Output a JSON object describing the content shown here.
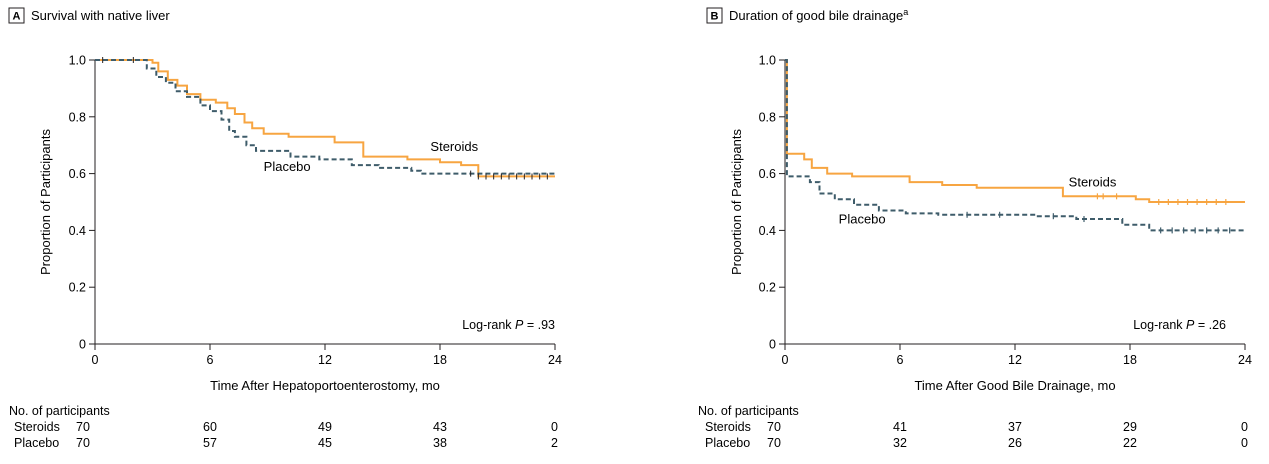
{
  "colors": {
    "steroids": "#f7a541",
    "placebo": "#3e5c6a",
    "axis": "#231f20"
  },
  "chart_data": [
    {
      "type": "line",
      "panel_letter": "A",
      "title": "Survival with native liver",
      "title_superscript": "",
      "xlabel": "Time After Hepatoportoenterostomy, mo",
      "ylabel": "Proportion of Participants",
      "xlim": [
        0,
        24
      ],
      "ylim": [
        0,
        1.0
      ],
      "xticks": [
        "0",
        "6",
        "12",
        "18",
        "24"
      ],
      "yticks": [
        "0",
        "0.2",
        "0.4",
        "0.6",
        "0.8",
        "1.0"
      ],
      "stat_prefix": "Log-rank ",
      "stat_p": "P",
      "stat_value": " = .93",
      "series": [
        {
          "name": "Steroids",
          "style": "solid",
          "label_at": [
            17.5,
            0.68
          ],
          "x": [
            0,
            3.0,
            3.3,
            3.8,
            4.3,
            4.8,
            5.5,
            6.3,
            6.9,
            7.3,
            7.8,
            8.2,
            8.8,
            10.1,
            12.5,
            14.0,
            16.3,
            18.0,
            19.1,
            20.0,
            24.0
          ],
          "y": [
            1.0,
            0.99,
            0.96,
            0.93,
            0.91,
            0.88,
            0.86,
            0.85,
            0.83,
            0.81,
            0.78,
            0.76,
            0.74,
            0.73,
            0.71,
            0.66,
            0.65,
            0.64,
            0.63,
            0.59,
            0.59
          ]
        },
        {
          "name": "Placebo",
          "style": "dashed",
          "label_at": [
            8.8,
            0.61
          ],
          "x": [
            0,
            2.7,
            3.2,
            3.7,
            4.2,
            4.8,
            5.5,
            6.0,
            6.6,
            7.0,
            7.3,
            7.9,
            8.4,
            10.2,
            11.7,
            13.4,
            14.8,
            16.5,
            17.0,
            24.0
          ],
          "y": [
            1.0,
            0.97,
            0.94,
            0.92,
            0.89,
            0.87,
            0.84,
            0.82,
            0.79,
            0.75,
            0.73,
            0.7,
            0.68,
            0.66,
            0.65,
            0.63,
            0.62,
            0.61,
            0.6,
            0.6
          ]
        }
      ],
      "censor_marks": [
        0.4,
        2.0,
        19.6,
        20.0,
        20.4,
        20.8,
        21.2,
        21.6,
        22.0,
        22.4,
        22.8,
        23.2,
        23.6
      ],
      "risk_table": {
        "heading": "No. of participants",
        "times": [
          0,
          6,
          12,
          18,
          24
        ],
        "rows": [
          {
            "label": "Steroids",
            "values": [
              "70",
              "60",
              "49",
              "43",
              "0"
            ]
          },
          {
            "label": "Placebo",
            "values": [
              "70",
              "57",
              "45",
              "38",
              "2"
            ]
          }
        ]
      }
    },
    {
      "type": "line",
      "panel_letter": "B",
      "title": "Duration of good bile drainage",
      "title_superscript": "a",
      "xlabel": "Time After Good Bile Drainage, mo",
      "ylabel": "Proportion of Participants",
      "xlim": [
        0,
        24
      ],
      "ylim": [
        0,
        1.0
      ],
      "xticks": [
        "0",
        "6",
        "12",
        "18",
        "24"
      ],
      "yticks": [
        "0",
        "0.2",
        "0.4",
        "0.6",
        "0.8",
        "1.0"
      ],
      "stat_prefix": "Log-rank ",
      "stat_p": "P",
      "stat_value": " = .26",
      "series": [
        {
          "name": "Steroids",
          "style": "solid",
          "label_at": [
            14.8,
            0.555
          ],
          "x": [
            0,
            0.1,
            1.0,
            1.4,
            2.2,
            3.5,
            6.5,
            8.2,
            10.0,
            14.5,
            18.3,
            19.0,
            24.0
          ],
          "y": [
            1.0,
            0.67,
            0.65,
            0.62,
            0.6,
            0.59,
            0.57,
            0.56,
            0.55,
            0.52,
            0.51,
            0.5,
            0.5
          ],
          "censor": [
            16.3,
            16.6,
            17.3,
            19.5,
            20.0,
            20.5,
            21.0,
            21.5,
            22.0,
            22.5,
            23.0
          ]
        },
        {
          "name": "Placebo",
          "style": "dashed",
          "label_at": [
            2.8,
            0.425
          ],
          "x": [
            0,
            0.1,
            1.3,
            1.8,
            2.6,
            3.6,
            4.9,
            6.3,
            8.0,
            13.0,
            15.2,
            17.6,
            19.0,
            24.0
          ],
          "y": [
            1.0,
            0.59,
            0.57,
            0.53,
            0.51,
            0.49,
            0.47,
            0.46,
            0.455,
            0.45,
            0.44,
            0.42,
            0.4,
            0.4
          ],
          "censor": [
            9.5,
            11.2,
            14.0,
            15.6,
            19.6,
            20.2,
            20.8,
            21.4,
            22.0,
            22.6,
            23.2
          ]
        }
      ],
      "risk_table": {
        "heading": "No. of participants",
        "times": [
          0,
          6,
          12,
          18,
          24
        ],
        "rows": [
          {
            "label": "Steroids",
            "values": [
              "70",
              "41",
              "37",
              "29",
              "0"
            ]
          },
          {
            "label": "Placebo",
            "values": [
              "70",
              "32",
              "26",
              "22",
              "0"
            ]
          }
        ]
      }
    }
  ]
}
